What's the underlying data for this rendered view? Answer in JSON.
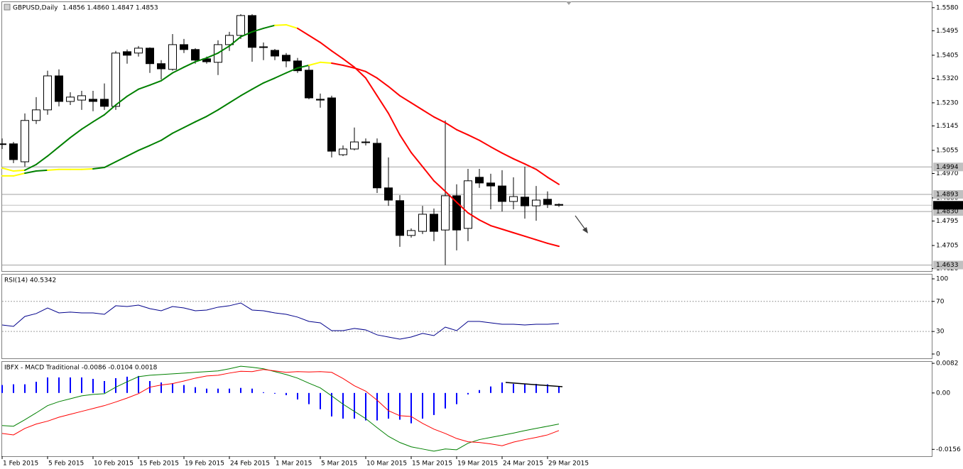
{
  "chart_data": [
    {
      "type": "candlestick",
      "title": "GBPUSD,Daily",
      "subtitle": "1.4856 1.4860 1.4847 1.4853",
      "categories": [
        "1 Feb 2015",
        null,
        null,
        null,
        "5 Feb 2015",
        null,
        null,
        null,
        "10 Feb 2015",
        null,
        null,
        null,
        "15 Feb 2015",
        null,
        null,
        null,
        "19 Feb 2015",
        null,
        null,
        null,
        "24 Feb 2015",
        null,
        null,
        null,
        "1 Mar 2015",
        null,
        null,
        null,
        "5 Mar 2015",
        null,
        null,
        null,
        "10 Mar 2015",
        null,
        null,
        null,
        "15 Mar 2015",
        null,
        null,
        null,
        "19 Mar 2015",
        null,
        null,
        null,
        "24 Mar 2015",
        null,
        null,
        null,
        "29 Mar 2015",
        null
      ],
      "open": [
        1.5079,
        1.5079,
        1.5013,
        1.5165,
        1.5204,
        1.5329,
        1.5235,
        1.524,
        1.5243,
        1.5243,
        1.5217,
        1.5418,
        1.5413,
        1.5431,
        1.5374,
        1.5353,
        1.5444,
        1.5426,
        1.5392,
        1.5379,
        1.5444,
        1.5478,
        1.5551,
        1.5436,
        1.5423,
        1.5405,
        1.5384,
        1.535,
        1.5243,
        1.5248,
        1.5039,
        1.506,
        1.5086,
        1.5081,
        1.4917,
        1.487,
        1.4742,
        1.4757,
        1.482,
        1.4762,
        1.4888,
        1.4768,
        1.4956,
        1.4935,
        1.4924,
        1.4867,
        1.4883,
        1.4851,
        1.4875,
        1.4856
      ],
      "high": [
        1.5099,
        1.5086,
        1.5191,
        1.5251,
        1.5348,
        1.5353,
        1.5269,
        1.5274,
        1.5274,
        1.5301,
        1.5421,
        1.5426,
        1.5439,
        1.5434,
        1.5387,
        1.5483,
        1.5465,
        1.5431,
        1.54,
        1.546,
        1.5491,
        1.5556,
        1.5556,
        1.5452,
        1.5428,
        1.5413,
        1.5395,
        1.5368,
        1.5264,
        1.5256,
        1.5073,
        1.5139,
        1.5099,
        1.5099,
        1.5029,
        1.489,
        1.4768,
        1.4851,
        1.4841,
        1.5165,
        1.493,
        1.4987,
        1.4987,
        1.4969,
        1.4982,
        1.4956,
        1.4995,
        1.4924,
        1.4904,
        1.486
      ],
      "low": [
        1.506,
        1.5008,
        1.4995,
        1.5152,
        1.5186,
        1.5217,
        1.5222,
        1.5204,
        1.5199,
        1.5204,
        1.5204,
        1.5374,
        1.54,
        1.534,
        1.5316,
        1.5348,
        1.5413,
        1.5374,
        1.5374,
        1.5332,
        1.5421,
        1.5465,
        1.5381,
        1.5387,
        1.5387,
        1.5361,
        1.534,
        1.5243,
        1.5212,
        1.5029,
        1.5034,
        1.5055,
        1.5073,
        1.4898,
        1.4851,
        1.47,
        1.4734,
        1.4747,
        1.4721,
        1.4633,
        1.4687,
        1.4721,
        1.4917,
        1.4838,
        1.483,
        1.4838,
        1.4804,
        1.4796,
        1.4843,
        1.4847
      ],
      "close": [
        1.5078,
        1.5021,
        1.5165,
        1.5204,
        1.5329,
        1.5235,
        1.5251,
        1.5256,
        1.5235,
        1.5217,
        1.5413,
        1.5405,
        1.5431,
        1.5374,
        1.5355,
        1.5444,
        1.5426,
        1.5387,
        1.5381,
        1.5444,
        1.5478,
        1.5551,
        1.5434,
        1.5434,
        1.5402,
        1.5384,
        1.5348,
        1.5248,
        1.524,
        1.5052,
        1.506,
        1.5086,
        1.5084,
        1.4917,
        1.4872,
        1.4742,
        1.476,
        1.482,
        1.4757,
        1.4888,
        1.4762,
        1.4943,
        1.4935,
        1.4924,
        1.4867,
        1.4885,
        1.4851,
        1.4872,
        1.4856,
        1.4853
      ],
      "up_color": "#ffffff",
      "down_color": "#000000",
      "series": [
        {
          "values": [
            1.499,
            1.4979,
            1.4982,
            1.5003,
            1.5034,
            1.5068,
            1.5102,
            1.5133,
            1.516,
            1.5186,
            1.5222,
            1.5254,
            1.528,
            1.5295,
            1.5311,
            1.534,
            1.5361,
            1.5381,
            1.5395,
            1.5413,
            1.5439,
            1.5473,
            1.5491,
            1.5504,
            1.5515,
            1.5517,
            1.5504,
            1.5478,
            1.5452,
            1.5421,
            1.5392,
            1.5361,
            1.5321,
            1.5256,
            1.5191,
            1.5112,
            1.5047,
            1.4995,
            1.4943,
            1.4904,
            1.4864,
            1.4825,
            1.4799,
            1.4778,
            1.4765,
            1.4752,
            1.4739,
            1.4726,
            1.4713,
            1.4702
          ]
        },
        {
          "values": [
            1.4961,
            1.4961,
            1.4971,
            1.4979,
            1.4982,
            1.4985,
            1.4985,
            1.4985,
            1.4987,
            1.4992,
            1.5013,
            1.5034,
            1.5055,
            1.5073,
            1.5092,
            1.5118,
            1.5139,
            1.516,
            1.518,
            1.5204,
            1.523,
            1.5256,
            1.528,
            1.5303,
            1.5321,
            1.534,
            1.5358,
            1.5368,
            1.5379,
            1.5376,
            1.5368,
            1.5358,
            1.5345,
            1.5321,
            1.529,
            1.5256,
            1.523,
            1.5204,
            1.5178,
            1.5157,
            1.5131,
            1.5112,
            1.5092,
            1.5068,
            1.5045,
            1.5024,
            1.5005,
            1.4985,
            1.4956,
            1.493
          ]
        }
      ],
      "rise_color": "#008000",
      "fall_color": "#ff0000",
      "turn_color": "#ffff00",
      "ylim": [
        1.4611,
        1.5603
      ],
      "yticks": [
        {
          "value": 1.558,
          "label": "1.5580"
        },
        {
          "value": 1.5495,
          "label": "1.5495"
        },
        {
          "value": 1.5405,
          "label": "1.5405"
        },
        {
          "value": 1.532,
          "label": "1.5320"
        },
        {
          "value": 1.523,
          "label": "1.5230"
        },
        {
          "value": 1.5145,
          "label": "1.5145"
        },
        {
          "value": 1.5055,
          "label": "1.5055"
        },
        {
          "value": 1.497,
          "label": "1.4970"
        },
        {
          "value": 1.488,
          "label": "1.4880"
        },
        {
          "value": 1.4795,
          "label": "1.4795"
        },
        {
          "value": 1.4705,
          "label": "1.4705"
        },
        {
          "value": 1.462,
          "label": "1.4620"
        }
      ],
      "levels": [
        {
          "value": 1.4994,
          "label": "1.4994"
        },
        {
          "value": 1.4893,
          "label": "1.4893"
        },
        {
          "value": 1.483,
          "label": "1.4830"
        },
        {
          "value": 1.4633,
          "label": "1.4633"
        }
      ],
      "current": {
        "value": 1.4853,
        "label": "1.4853"
      }
    },
    {
      "type": "line",
      "title": "RSI(14) 40.5342",
      "color": "#00008b",
      "values": [
        38.7,
        36.8,
        50,
        53.8,
        61.3,
        54.7,
        55.7,
        54.7,
        54.7,
        52.8,
        64.2,
        63.2,
        65.1,
        60.4,
        57.5,
        63.2,
        61.3,
        57.5,
        58.5,
        62.3,
        64.2,
        67.9,
        58.5,
        57.5,
        54.7,
        52.8,
        49.1,
        43.4,
        41.5,
        31.1,
        31.1,
        34.0,
        32.1,
        25.5,
        22.6,
        19.8,
        22.6,
        27.4,
        24.5,
        35.8,
        31.1,
        43.4,
        43.4,
        41.5,
        39.6,
        39.6,
        38.7,
        39.6,
        39.6,
        40.5342
      ],
      "ylim": [
        -5.7,
        106.6
      ],
      "yticks": [
        0,
        30,
        70,
        100
      ],
      "grid": true
    },
    {
      "type": "macd",
      "title": "IBFX - MACD Traditional -0.0086 -0.0104 0.0018",
      "series": [
        {
          "style": "histogram",
          "color": "#0000ff",
          "values": [
            0.0022,
            0.0024,
            0.0024,
            0.0031,
            0.0043,
            0.0043,
            0.0043,
            0.0043,
            0.0039,
            0.0033,
            0.0041,
            0.0045,
            0.0047,
            0.0033,
            0.0029,
            0.0027,
            0.0022,
            0.0016,
            0.0012,
            0.0012,
            0.0012,
            0.0014,
            0.0012,
            0.0002,
            -0.0002,
            -0.0006,
            -0.0018,
            -0.0031,
            -0.0045,
            -0.0065,
            -0.0071,
            -0.0071,
            -0.0076,
            -0.0076,
            -0.0071,
            -0.0074,
            -0.0084,
            -0.0071,
            -0.0061,
            -0.0043,
            -0.0031,
            -0.0004,
            0.0008,
            0.0018,
            0.0029,
            0.0025,
            0.0025,
            0.0025,
            0.0024,
            0.0018
          ]
        },
        {
          "style": "line",
          "color": "#008000",
          "values": [
            -0.009,
            -0.0092,
            -0.0074,
            -0.0055,
            -0.0035,
            -0.0024,
            -0.0016,
            -0.0008,
            -0.0004,
            -0.0002,
            0.0016,
            0.0031,
            0.0045,
            0.0049,
            0.0051,
            0.0053,
            0.0055,
            0.0057,
            0.0059,
            0.0061,
            0.0067,
            0.0074,
            0.0071,
            0.0067,
            0.0059,
            0.0051,
            0.0041,
            0.0027,
            0.0014,
            -0.0008,
            -0.0031,
            -0.0051,
            -0.0071,
            -0.0096,
            -0.012,
            -0.0137,
            -0.0149,
            -0.0155,
            -0.0161,
            -0.0155,
            -0.0157,
            -0.0139,
            -0.0129,
            -0.0123,
            -0.0117,
            -0.0111,
            -0.0104,
            -0.0098,
            -0.0092,
            -0.0086
          ]
        },
        {
          "style": "line",
          "color": "#ff0000",
          "values": [
            -0.0112,
            -0.0116,
            -0.0098,
            -0.0086,
            -0.0078,
            -0.0067,
            -0.0059,
            -0.0051,
            -0.0043,
            -0.0035,
            -0.0025,
            -0.0014,
            -0.0002,
            0.0016,
            0.0022,
            0.0026,
            0.0033,
            0.0041,
            0.0047,
            0.0049,
            0.0055,
            0.006,
            0.0059,
            0.0065,
            0.0061,
            0.0057,
            0.0059,
            0.0058,
            0.0059,
            0.0057,
            0.004,
            0.002,
            0.0005,
            -0.002,
            -0.0049,
            -0.0063,
            -0.0065,
            -0.0084,
            -0.01,
            -0.0112,
            -0.0126,
            -0.0135,
            -0.0137,
            -0.0141,
            -0.0146,
            -0.0136,
            -0.0129,
            -0.0123,
            -0.0116,
            -0.0104
          ]
        }
      ],
      "ylim": [
        -0.0175,
        0.0088
      ],
      "yticks": [
        0.0082,
        {
          "value": 0,
          "label": "0.00"
        },
        -0.0156
      ]
    }
  ]
}
